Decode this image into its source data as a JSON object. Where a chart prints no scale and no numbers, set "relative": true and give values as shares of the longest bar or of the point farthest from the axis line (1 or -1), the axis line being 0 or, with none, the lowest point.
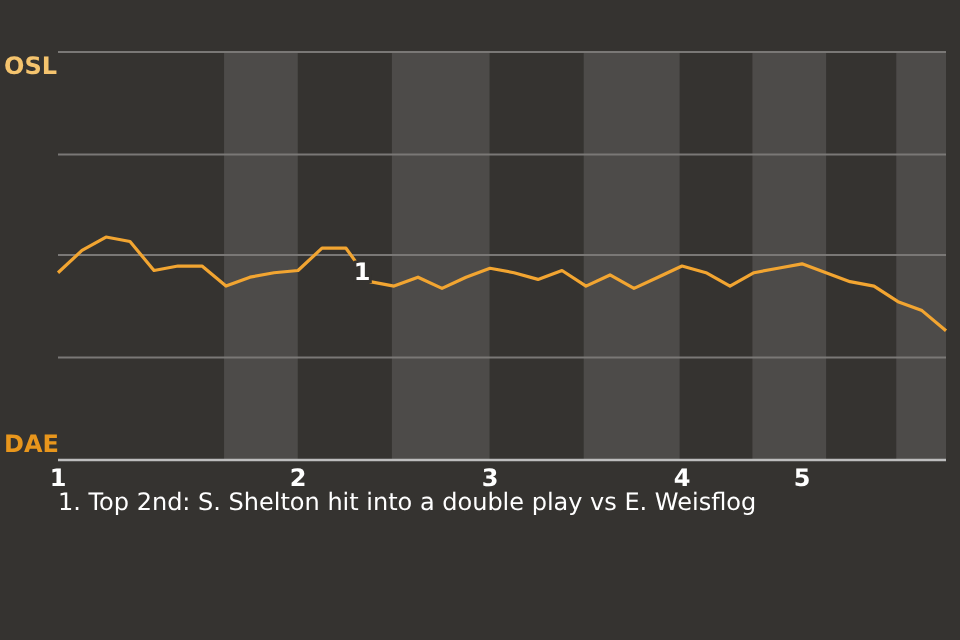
{
  "chart_data": {
    "type": "line",
    "relative": true,
    "categories": [
      "1",
      null,
      null,
      null,
      null,
      null,
      null,
      null,
      null,
      null,
      "2",
      null,
      null,
      null,
      null,
      null,
      null,
      null,
      "3",
      null,
      null,
      null,
      null,
      null,
      null,
      null,
      "4",
      null,
      null,
      null,
      null,
      "5",
      null,
      null,
      null,
      null,
      null,
      null
    ],
    "marker": "none",
    "line_style": "solid",
    "ref_lines": [
      {
        "axis": "y",
        "value": 0.46,
        "color": "#7a7876"
      },
      {
        "axis": "y",
        "value": 0.92,
        "color": "#7a7876"
      },
      {
        "axis": "y",
        "value": 1.37,
        "color": "#7a7876"
      },
      {
        "axis": "y",
        "value": 1.83,
        "color": "#7a7876"
      }
    ],
    "series": [
      {
        "color": "#f2a531",
        "values": [
          0.84,
          0.94,
          1,
          0.98,
          0.85,
          0.87,
          0.87,
          0.78,
          0.82,
          0.84,
          0.85,
          0.95,
          0.95,
          0.8,
          0.78,
          0.82,
          0.77,
          0.82,
          0.86,
          0.84,
          0.81,
          0.85,
          0.78,
          0.83,
          0.77,
          0.82,
          0.87,
          0.84,
          0.78,
          0.84,
          0.86,
          0.88,
          0.84,
          0.8,
          0.78,
          0.71,
          0.67,
          0.58
        ]
      }
    ],
    "annotations": [
      "OSL",
      "DAE",
      {
        "text": "1",
        "y": 0.8
      },
      "1. Top 2nd: S. Shelton hit into a double play vs E. Weisflog"
    ]
  }
}
